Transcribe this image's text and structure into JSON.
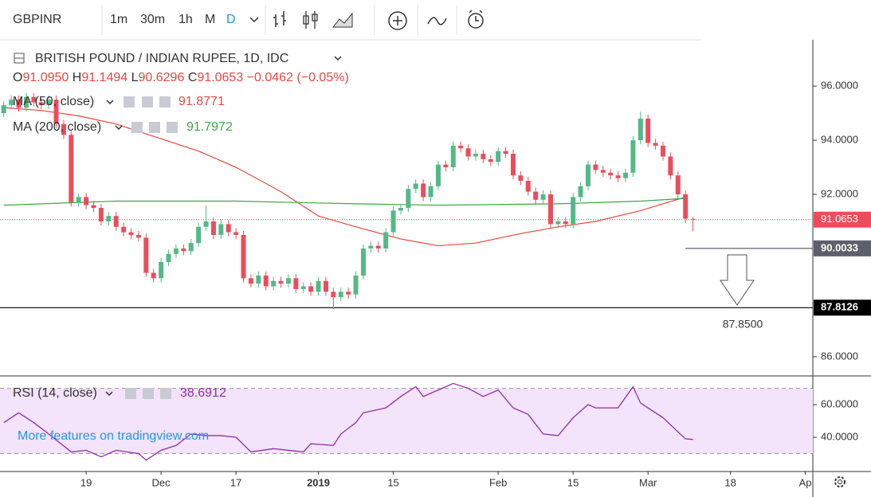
{
  "toolbar": {
    "symbol": "GBPINR",
    "intervals": [
      "1m",
      "30m",
      "1h",
      "M",
      "D"
    ]
  },
  "legend": {
    "ohlc": [
      {
        "letter": "O",
        "value": "91.0950"
      },
      {
        "letter": "H",
        "value": "91.1494"
      },
      {
        "letter": "L",
        "value": "90.6296"
      },
      {
        "letter": "C",
        "value": "91.0653"
      }
    ],
    "change": "−0.0462 (−0.05%)"
  },
  "watermark": "More features on tradingview.com",
  "chart_data": [
    {
      "type": "candlestick",
      "title": "BRITISH POUND / INDIAN RUPEE, 1D, IDC",
      "up_color": "#53b987",
      "down_color": "#eb4d5c",
      "open": [
        95.0,
        95.3,
        95.5,
        95.2,
        95.6,
        95.4,
        95.3,
        95.5,
        94.6,
        94.2,
        91.7,
        91.9,
        91.6,
        91.5,
        91.0,
        91.2,
        90.8,
        90.6,
        90.5,
        90.4,
        89.1,
        88.9,
        89.5,
        89.8,
        90.0,
        89.9,
        90.2,
        90.8,
        91.0,
        90.5,
        90.9,
        90.6,
        90.5,
        88.9,
        88.7,
        89.0,
        88.6,
        88.8,
        88.7,
        88.9,
        88.5,
        88.6,
        88.4,
        88.8,
        88.4,
        88.2,
        88.4,
        88.3,
        89.0,
        90.0,
        90.1,
        90.0,
        90.6,
        91.4,
        91.5,
        92.2,
        92.4,
        91.9,
        92.3,
        93.1,
        93.0,
        93.8,
        93.7,
        93.4,
        93.5,
        93.3,
        93.2,
        93.6,
        93.5,
        92.7,
        92.5,
        92.1,
        91.8,
        92.0,
        90.9,
        91.0,
        90.9,
        91.9,
        92.3,
        93.1,
        92.9,
        92.8,
        92.7,
        92.6,
        92.8,
        94.0,
        94.8,
        93.9,
        93.8,
        93.4,
        92.7,
        92.0,
        91.095
      ],
      "high": [
        95.45,
        95.65,
        95.65,
        95.75,
        95.75,
        95.55,
        95.65,
        95.65,
        94.75,
        94.35,
        92.05,
        92.05,
        91.75,
        91.65,
        91.35,
        91.35,
        90.95,
        90.75,
        90.65,
        90.55,
        89.25,
        89.65,
        89.95,
        90.15,
        90.15,
        90.35,
        90.95,
        91.6,
        91.15,
        91.05,
        91.05,
        90.75,
        90.65,
        89.05,
        89.15,
        89.15,
        88.95,
        88.95,
        89.05,
        89.05,
        88.75,
        88.75,
        88.95,
        88.95,
        88.55,
        88.55,
        88.55,
        89.15,
        90.15,
        90.25,
        90.25,
        90.75,
        91.55,
        91.65,
        92.35,
        92.55,
        92.55,
        92.45,
        93.25,
        93.25,
        93.95,
        93.95,
        93.85,
        93.65,
        93.65,
        93.45,
        93.75,
        93.75,
        93.65,
        92.85,
        92.65,
        92.25,
        92.15,
        92.15,
        91.15,
        91.15,
        92.05,
        92.45,
        93.25,
        93.25,
        93.05,
        92.95,
        92.85,
        92.95,
        94.15,
        95.05,
        94.95,
        94.05,
        93.95,
        93.55,
        92.85,
        92.15,
        91.1494
      ],
      "low": [
        94.85,
        95.15,
        95.05,
        95.05,
        95.25,
        95.15,
        95.15,
        94.45,
        94.05,
        91.55,
        91.55,
        91.45,
        91.35,
        90.85,
        90.85,
        90.65,
        90.45,
        90.35,
        90.25,
        88.95,
        88.75,
        88.75,
        89.35,
        89.65,
        89.75,
        89.75,
        90.05,
        90.65,
        90.35,
        90.35,
        90.45,
        90.35,
        88.75,
        88.55,
        88.55,
        88.45,
        88.45,
        88.55,
        88.55,
        88.35,
        88.35,
        88.25,
        88.25,
        88.25,
        87.75,
        88.05,
        88.15,
        88.15,
        88.85,
        89.85,
        89.85,
        89.85,
        90.45,
        91.25,
        91.35,
        92.05,
        91.75,
        91.75,
        92.15,
        92.85,
        92.85,
        93.55,
        93.25,
        93.25,
        93.15,
        93.05,
        93.05,
        93.35,
        92.55,
        92.35,
        91.95,
        91.65,
        91.65,
        90.75,
        90.75,
        90.75,
        90.75,
        91.75,
        92.15,
        92.75,
        92.65,
        92.55,
        92.45,
        92.45,
        92.65,
        93.85,
        93.75,
        93.65,
        93.25,
        92.55,
        91.85,
        90.95,
        90.6296
      ],
      "close": [
        95.3,
        95.5,
        95.2,
        95.6,
        95.4,
        95.3,
        95.5,
        94.6,
        94.2,
        91.7,
        91.9,
        91.6,
        91.5,
        91.0,
        91.2,
        90.8,
        90.6,
        90.5,
        90.4,
        89.1,
        88.9,
        89.5,
        89.8,
        90.0,
        89.9,
        90.2,
        90.8,
        91.0,
        90.5,
        90.9,
        90.6,
        90.5,
        88.9,
        88.7,
        89.0,
        88.6,
        88.8,
        88.7,
        88.9,
        88.5,
        88.6,
        88.4,
        88.8,
        88.4,
        88.2,
        88.4,
        88.3,
        89.0,
        90.0,
        90.1,
        90.0,
        90.6,
        91.4,
        91.5,
        92.2,
        92.4,
        91.9,
        92.3,
        93.1,
        93.0,
        93.8,
        93.7,
        93.4,
        93.5,
        93.3,
        93.2,
        93.6,
        93.5,
        92.7,
        92.5,
        92.1,
        91.8,
        92.0,
        90.9,
        91.0,
        90.9,
        91.9,
        92.3,
        93.1,
        92.9,
        92.8,
        92.7,
        92.6,
        92.8,
        94.0,
        94.8,
        93.9,
        93.8,
        93.4,
        92.7,
        92.0,
        91.1,
        91.0653
      ],
      "xlim": [
        -0.5,
        108
      ],
      "xticks": [
        {
          "value": 11,
          "label": "19"
        },
        {
          "value": 21,
          "label": "Dec"
        },
        {
          "value": 31,
          "label": "17"
        },
        {
          "value": 42,
          "label": "2019",
          "bold": true
        },
        {
          "value": 52,
          "label": "15"
        },
        {
          "value": 66,
          "label": "Feb"
        },
        {
          "value": 76,
          "label": "15"
        },
        {
          "value": 86,
          "label": "Mar"
        },
        {
          "value": 97,
          "label": "18"
        },
        {
          "value": 107,
          "label": "Ap"
        }
      ],
      "ylim": [
        85.29,
        97.71
      ],
      "yticks": [
        {
          "value": 86,
          "label": "86.0000"
        },
        {
          "value": 92,
          "label": "92.0000"
        },
        {
          "value": 94,
          "label": "94.0000"
        },
        {
          "value": 96,
          "label": "96.0000"
        }
      ],
      "overlays": [
        {
          "name": "MA (50, close)",
          "color": "#e8473f",
          "value_label": "91.8771",
          "x": [
            0,
            5,
            10,
            15,
            26,
            31,
            37,
            42,
            47,
            53,
            58,
            63,
            69,
            74,
            79,
            85,
            91
          ],
          "values": [
            95.2,
            95.1,
            94.9,
            94.6,
            93.6,
            93.0,
            92.1,
            91.2,
            90.8,
            90.35,
            90.1,
            90.2,
            90.55,
            90.8,
            91.0,
            91.4,
            91.9
          ]
        },
        {
          "name": "MA (200, close)",
          "color": "#3fa548",
          "value_label": "91.7972",
          "x": [
            0,
            15,
            31,
            47,
            58,
            74,
            85,
            91
          ],
          "values": [
            91.6,
            91.75,
            91.75,
            91.65,
            91.6,
            91.65,
            91.75,
            91.85
          ]
        }
      ],
      "last_price": {
        "value": 91.0653,
        "label": "91.0653",
        "color": "#eb4d5c"
      },
      "levels": [
        {
          "value": 90.0033,
          "label": "90.0033",
          "color": "#5d606b"
        },
        {
          "value": 87.8126,
          "label": "87.8126",
          "color": "#000000"
        }
      ],
      "annotation": "87.8500"
    },
    {
      "type": "line",
      "title": "RSI (14, close)",
      "value_label": "38.6912",
      "series": [
        {
          "name": "RSI (14, close)",
          "color": "#8e2fa8",
          "x": [
            0,
            2,
            4,
            6,
            9,
            11,
            13,
            15,
            18,
            19,
            21,
            23,
            25,
            27,
            29,
            31,
            33,
            36,
            40,
            41,
            44,
            45,
            47,
            48,
            51,
            53,
            55,
            56,
            58,
            60,
            62,
            64,
            66,
            68,
            70,
            72,
            74,
            76,
            78,
            79,
            82,
            84,
            85,
            88,
            91,
            92
          ],
          "values": [
            49,
            55,
            49,
            42,
            31,
            32,
            28,
            32,
            30,
            26,
            32,
            35,
            42,
            41,
            41,
            40,
            31,
            33,
            31,
            36,
            35,
            42,
            49,
            55,
            58,
            65,
            71,
            65,
            69,
            73,
            70,
            65,
            69,
            58,
            54,
            42,
            41,
            52,
            60,
            58,
            58,
            71,
            61,
            52,
            39,
            38.6912
          ]
        }
      ],
      "band": [
        30,
        70
      ],
      "band_color": "#f3e3fb",
      "ylim": [
        19,
        77.6
      ],
      "yticks": [
        {
          "value": 40,
          "label": "40.0000"
        },
        {
          "value": 60,
          "label": "60.0000"
        }
      ]
    }
  ]
}
